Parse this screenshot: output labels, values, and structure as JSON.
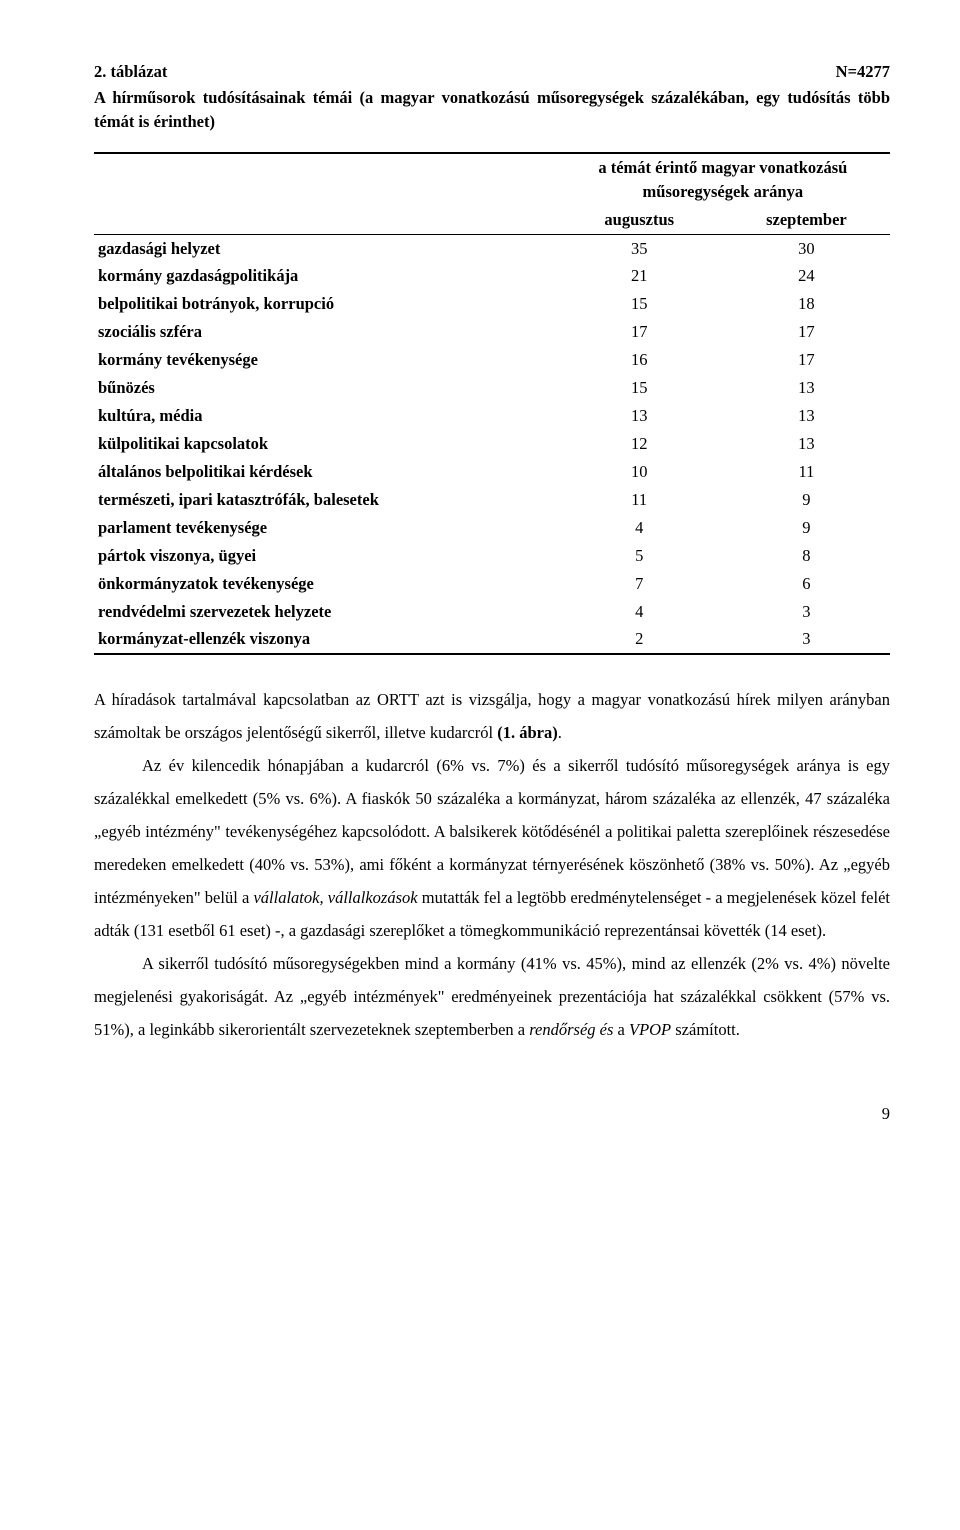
{
  "table": {
    "number_label": "2. táblázat",
    "n_label": "N=4277",
    "subtitle": "A hírműsorok tudósításainak témái (a magyar vonatkozású műsoregységek százalékában, egy tudósítás több témát is érinthet)",
    "col_header_top": "a témát érintő magyar vonatkozású műsoregységek aránya",
    "col_aug": "augusztus",
    "col_sep": "szeptember",
    "rows": [
      {
        "label": "gazdasági helyzet",
        "aug": "35",
        "sep": "30"
      },
      {
        "label": "kormány gazdaságpolitikája",
        "aug": "21",
        "sep": "24"
      },
      {
        "label": "belpolitikai botrányok, korrupció",
        "aug": "15",
        "sep": "18"
      },
      {
        "label": "szociális szféra",
        "aug": "17",
        "sep": "17"
      },
      {
        "label": "kormány tevékenysége",
        "aug": "16",
        "sep": "17"
      },
      {
        "label": "bűnözés",
        "aug": "15",
        "sep": "13"
      },
      {
        "label": "kultúra, média",
        "aug": "13",
        "sep": "13"
      },
      {
        "label": "külpolitikai kapcsolatok",
        "aug": "12",
        "sep": "13"
      },
      {
        "label": "általános belpolitikai kérdések",
        "aug": "10",
        "sep": "11"
      },
      {
        "label": "természeti, ipari katasztrófák, balesetek",
        "aug": "11",
        "sep": "9"
      },
      {
        "label": "parlament tevékenysége",
        "aug": "4",
        "sep": "9"
      },
      {
        "label": "pártok viszonya, ügyei",
        "aug": "5",
        "sep": "8"
      },
      {
        "label": "önkormányzatok tevékenysége",
        "aug": "7",
        "sep": "6"
      },
      {
        "label": "rendvédelmi szervezetek helyzete",
        "aug": "4",
        "sep": "3"
      },
      {
        "label": "kormányzat-ellenzék viszonya",
        "aug": "2",
        "sep": "3"
      }
    ]
  },
  "body": {
    "p1a": "A híradások tartalmával kapcsolatban az ORTT azt is vizsgálja, hogy a magyar vonatkozású hírek milyen arányban számoltak be országos jelentőségű sikerről, illetve kudarcról ",
    "p1b": "(1. ábra)",
    "p1c": ".",
    "p2a": "Az év kilencedik hónapjában a kudarcról (6% vs. 7%) és a sikerről tudósító műsoregységek aránya is egy százalékkal emelkedett (5% vs. 6%). A fiaskók 50 százaléka a kormányzat, három százaléka az ellenzék, 47 százaléka „egyéb intézmény\" tevékenységéhez kapcsolódott. A balsikerek kötődésénél a politikai paletta szereplőinek részesedése meredeken emelkedett (40% vs. 53%), ami főként a kormányzat térnyerésének köszönhető (38% vs. 50%). Az „egyéb intézményeken\" belül a ",
    "p2b": "vállalatok, vállalkozások",
    "p2c": " mutatták fel a legtöbb eredménytelenséget - a megjelenések közel felét adták (131 esetből 61 eset) -, a gazdasági szereplőket a tömegkommunikáció reprezentánsai követték (14 eset).",
    "p3a": "A sikerről tudósító műsoregységekben mind a kormány (41% vs. 45%), mind az ellenzék (2% vs. 4%) növelte megjelenési gyakoriságát. Az „egyéb intézmények\" eredményeinek prezentációja hat százalékkal csökkent (57% vs. 51%), a leginkább sikerorientált szervezeteknek szeptemberben a ",
    "p3b": "rendőrség és",
    "p3c": " a ",
    "p3d": "VPOP",
    "p3e": " számított."
  },
  "page_number": "9"
}
